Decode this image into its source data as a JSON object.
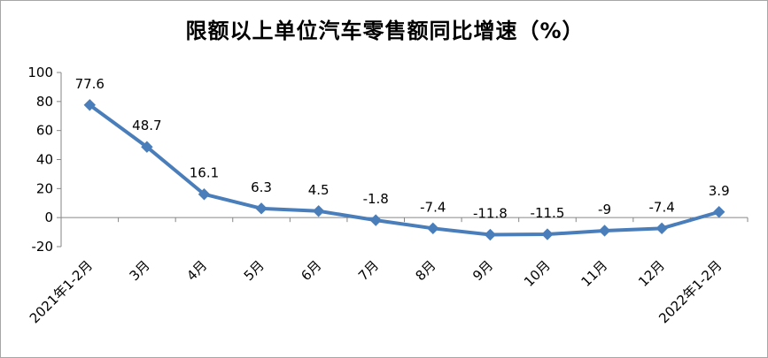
{
  "chart_data": {
    "type": "line",
    "title": "限额以上单位汽车零售额同比增速（%）",
    "categories": [
      "2021年1-2月",
      "3月",
      "4月",
      "5月",
      "6月",
      "7月",
      "8月",
      "9月",
      "10月",
      "11月",
      "12月",
      "2022年1-2月"
    ],
    "series": [
      {
        "values": [
          77.6,
          48.7,
          16.1,
          6.3,
          4.5,
          -1.8,
          -7.4,
          -11.8,
          -11.5,
          -9,
          -7.4,
          3.9
        ],
        "labels": [
          "77.6",
          "48.7",
          "16.1",
          "6.3",
          "4.5",
          "-1.8",
          "-7.4",
          "-11.8",
          "-11.5",
          "-9",
          "-7.4",
          "3.9"
        ]
      }
    ],
    "y_ticks": [
      "100",
      "80",
      "60",
      "40",
      "20",
      "0",
      "-20"
    ],
    "ylim": [
      -20,
      100
    ],
    "xlabel": "",
    "ylabel": "",
    "grid": false,
    "legend": "none",
    "line_color": "#4a7ebb"
  }
}
